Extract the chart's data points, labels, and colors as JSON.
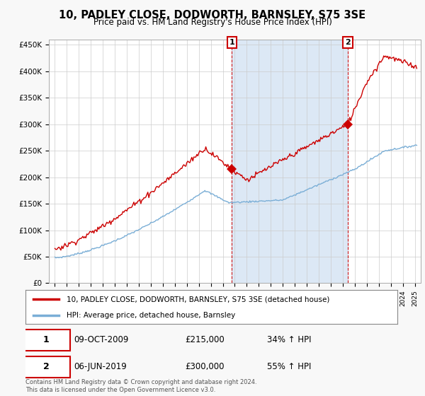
{
  "title": "10, PADLEY CLOSE, DODWORTH, BARNSLEY, S75 3SE",
  "subtitle": "Price paid vs. HM Land Registry's House Price Index (HPI)",
  "ylim": [
    0,
    460000
  ],
  "yticks": [
    0,
    50000,
    100000,
    150000,
    200000,
    250000,
    300000,
    350000,
    400000,
    450000
  ],
  "ytick_labels": [
    "£0",
    "£50K",
    "£100K",
    "£150K",
    "£200K",
    "£250K",
    "£300K",
    "£350K",
    "£400K",
    "£450K"
  ],
  "background_color": "#f8f8f8",
  "plot_bg_color": "#ffffff",
  "grid_color": "#cccccc",
  "transaction1": {
    "date": "09-OCT-2009",
    "price": 215000,
    "hpi_change": "34% ↑ HPI",
    "label": "1"
  },
  "transaction2": {
    "date": "06-JUN-2019",
    "price": 300000,
    "hpi_change": "55% ↑ HPI",
    "label": "2"
  },
  "line1_label": "10, PADLEY CLOSE, DODWORTH, BARNSLEY, S75 3SE (detached house)",
  "line2_label": "HPI: Average price, detached house, Barnsley",
  "line1_color": "#cc0000",
  "line2_color": "#7aaed6",
  "t1": 2009.75,
  "t2": 2019.42,
  "price1": 215000,
  "price2": 300000,
  "shade_color": "#dce8f5",
  "footnote": "Contains HM Land Registry data © Crown copyright and database right 2024.\nThis data is licensed under the Open Government Licence v3.0."
}
